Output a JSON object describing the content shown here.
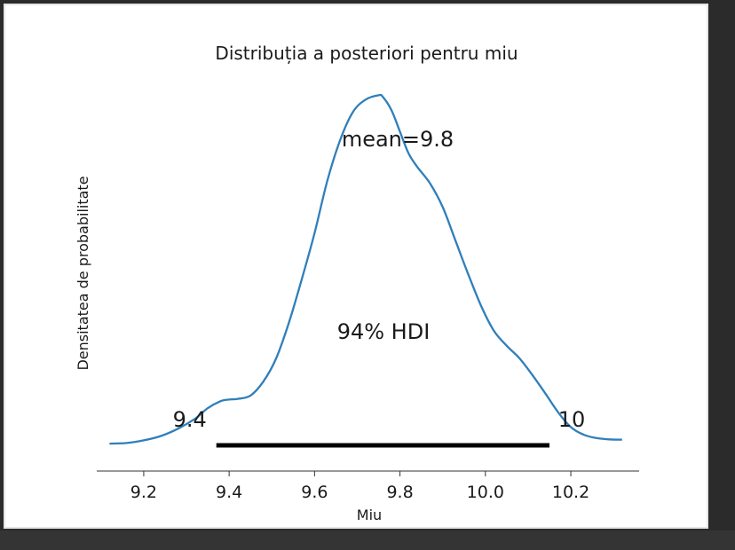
{
  "chart_data": {
    "type": "line",
    "title": "Distribuția a posteriori pentru miu",
    "xlabel": "Miu",
    "ylabel": "Densitatea de probabilitate",
    "xlim": [
      9.09,
      10.36
    ],
    "ylim": [
      0,
      1.08
    ],
    "x_ticks": [
      9.2,
      9.4,
      9.6,
      9.8,
      10.0,
      10.2
    ],
    "x_tick_labels": [
      "9.2",
      "9.4",
      "9.6",
      "9.8",
      "10.0",
      "10.2"
    ],
    "y_ticks_shown": false,
    "series": [
      {
        "color": "#2f7fba",
        "x": [
          9.12,
          9.16,
          9.2,
          9.24,
          9.28,
          9.32,
          9.35,
          9.38,
          9.4,
          9.42,
          9.45,
          9.48,
          9.51,
          9.54,
          9.57,
          9.6,
          9.63,
          9.66,
          9.69,
          9.72,
          9.75,
          9.76,
          9.78,
          9.8,
          9.82,
          9.84,
          9.87,
          9.9,
          9.93,
          9.96,
          9.99,
          10.02,
          10.05,
          10.08,
          10.11,
          10.14,
          10.17,
          10.2,
          10.23,
          10.26,
          10.29,
          10.32
        ],
        "values": [
          0.005,
          0.007,
          0.015,
          0.028,
          0.05,
          0.08,
          0.112,
          0.133,
          0.138,
          0.14,
          0.15,
          0.192,
          0.262,
          0.37,
          0.5,
          0.64,
          0.798,
          0.92,
          1.005,
          1.042,
          1.055,
          1.05,
          1.01,
          0.945,
          0.88,
          0.84,
          0.79,
          0.718,
          0.617,
          0.515,
          0.42,
          0.345,
          0.3,
          0.262,
          0.212,
          0.157,
          0.1,
          0.055,
          0.032,
          0.022,
          0.018,
          0.017
        ]
      }
    ],
    "mean_label": "mean=9.8",
    "hdi": {
      "label": "94% HDI",
      "low": 9.37,
      "high": 10.15,
      "low_label": "9.4",
      "high_label": "10",
      "color": "#000000"
    }
  }
}
